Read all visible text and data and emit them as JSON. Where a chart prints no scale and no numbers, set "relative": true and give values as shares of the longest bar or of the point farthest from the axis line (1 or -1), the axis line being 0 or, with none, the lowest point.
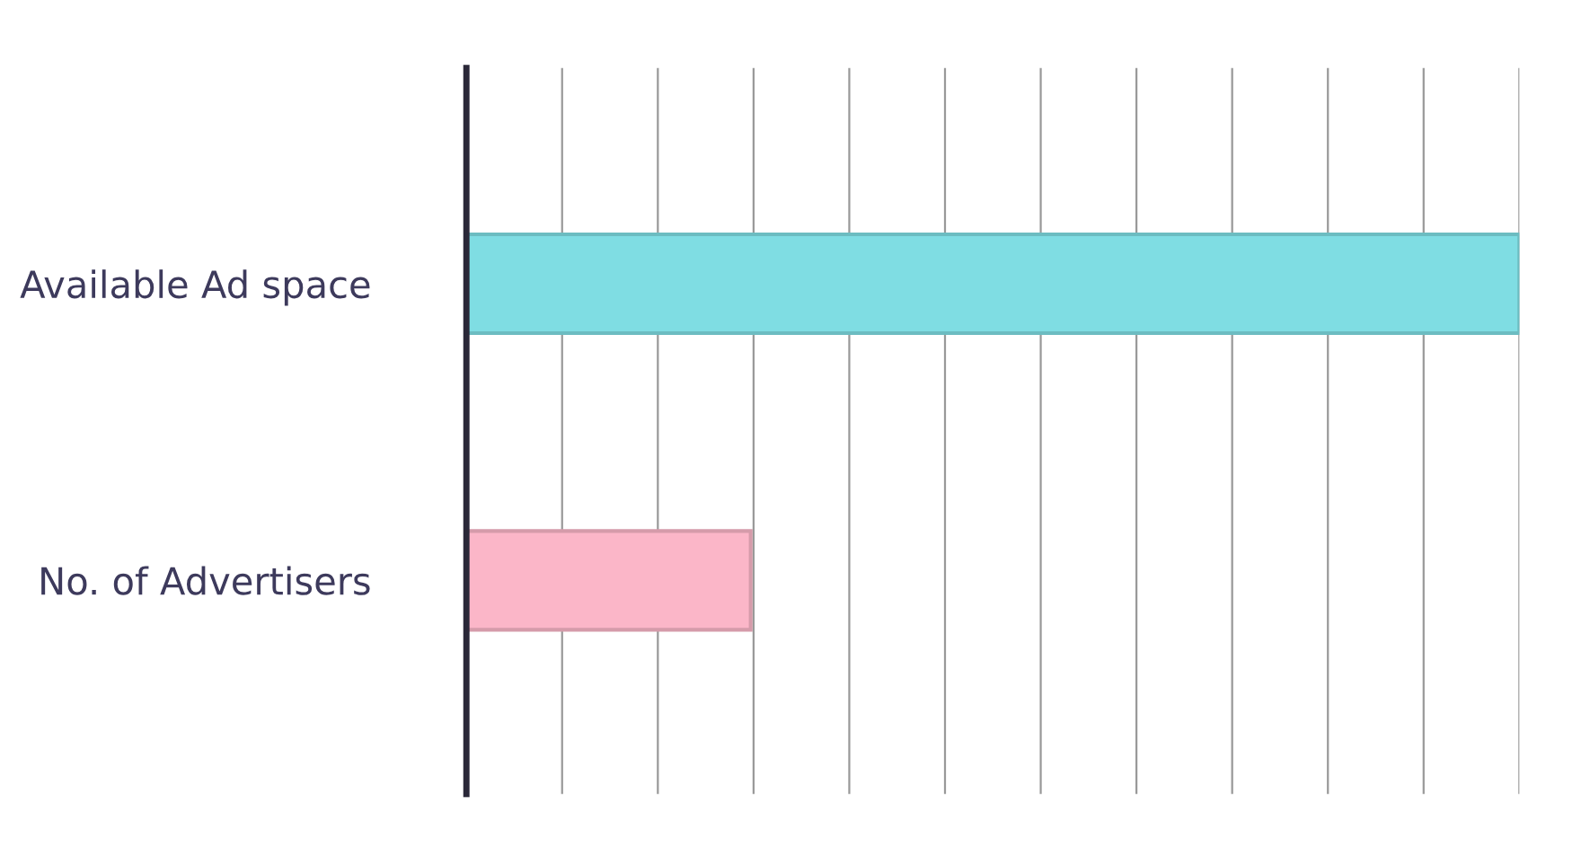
{
  "chart_data": {
    "type": "bar",
    "orientation": "horizontal",
    "relative": true,
    "categories": [
      "Available Ad space",
      "No. of Advertisers"
    ],
    "values": [
      1,
      0.27
    ],
    "colors": [
      "#7fdde3",
      "#fbb6c8"
    ],
    "grid": "x",
    "legend": false
  }
}
